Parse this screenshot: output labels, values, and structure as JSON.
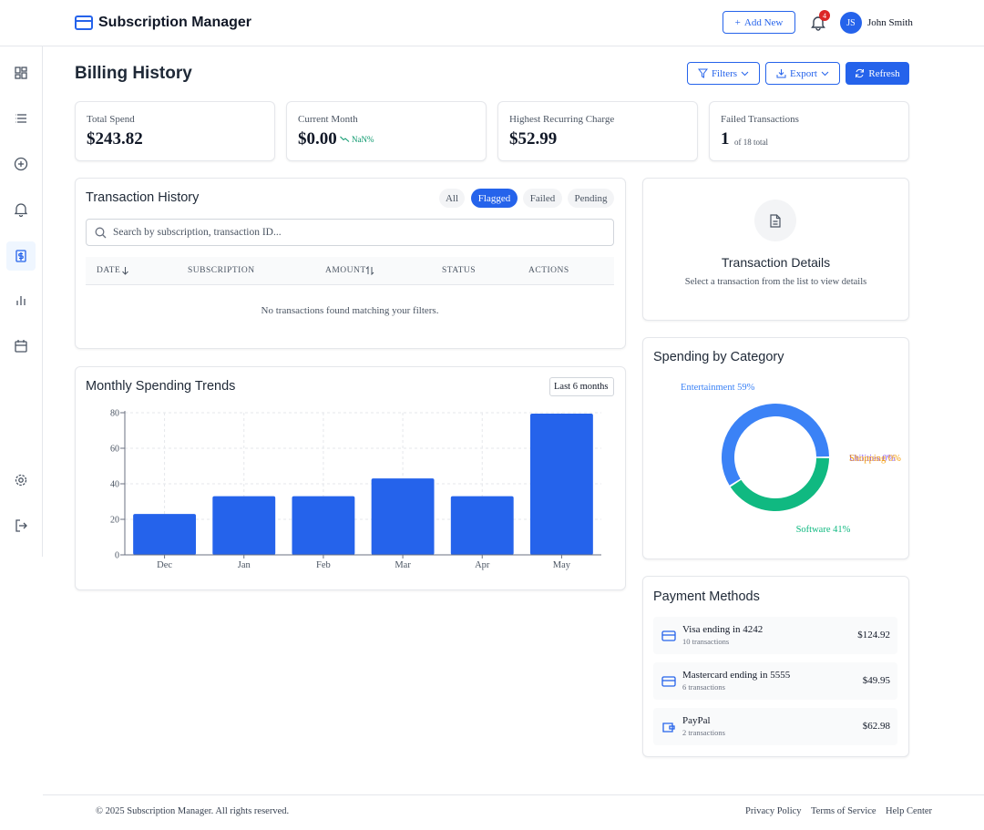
{
  "header": {
    "title": "Subscription Manager",
    "add_new": "Add New",
    "notification_count": "4",
    "user_initials": "JS",
    "user_name": "John Smith"
  },
  "page": {
    "title": "Billing History",
    "buttons": [
      "Filters",
      "Export",
      "Refresh"
    ]
  },
  "stats": [
    {
      "label": "Total Spend",
      "value": "$243.82"
    },
    {
      "label": "Current Month",
      "value": "$0.00",
      "change": "NaN%"
    },
    {
      "label": "Highest Recurring Charge",
      "value": "$52.99"
    },
    {
      "label": "Failed Transactions",
      "value": "1",
      "note": "of 18 total"
    }
  ],
  "transactions": {
    "title": "Transaction History",
    "tabs": [
      "All",
      "Flagged",
      "Failed",
      "Pending"
    ],
    "active_tab": 1,
    "search_placeholder": "Search by subscription, transaction ID...",
    "columns": [
      "DATE",
      "SUBSCRIPTION",
      "AMOUNT",
      "STATUS",
      "ACTIONS"
    ],
    "empty_message": "No transactions found matching your filters."
  },
  "details": {
    "title": "Transaction Details",
    "message": "Select a transaction from the list to view details"
  },
  "chart_data": [
    {
      "type": "bar",
      "title": "Monthly Spending Trends",
      "range_selector": "Last 6 months",
      "categories": [
        "Dec",
        "Jan",
        "Feb",
        "Mar",
        "Apr",
        "May"
      ],
      "values": [
        23,
        33,
        33,
        43,
        33,
        79.5
      ],
      "color": "#2563eb",
      "ylim": [
        0,
        80
      ],
      "yticks": [
        0,
        20,
        40,
        60,
        80
      ],
      "grid": true
    },
    {
      "type": "pie",
      "title": "Spending by Category",
      "values": [
        59,
        41,
        0,
        0
      ],
      "value_labels": [
        "Entertainment 59%",
        "Software 41%",
        "Utilities 0%",
        "Shopping 0%"
      ],
      "colors": [
        "#3b82f6",
        "#10b981",
        "#8b5cf6",
        "#f59e0b"
      ],
      "donut": true
    }
  ],
  "payment_methods": {
    "title": "Payment Methods",
    "items": [
      {
        "name": "Visa ending in 4242",
        "count": "10 transactions",
        "amount": "$124.92",
        "icon": "card"
      },
      {
        "name": "Mastercard ending in 5555",
        "count": "6 transactions",
        "amount": "$49.95",
        "icon": "card"
      },
      {
        "name": "PayPal",
        "count": "2 transactions",
        "amount": "$62.98",
        "icon": "wallet"
      }
    ]
  },
  "footer": {
    "copyright": "© 2025 Subscription Manager. All rights reserved.",
    "links": [
      "Privacy Policy",
      "Terms of Service",
      "Help Center"
    ]
  }
}
